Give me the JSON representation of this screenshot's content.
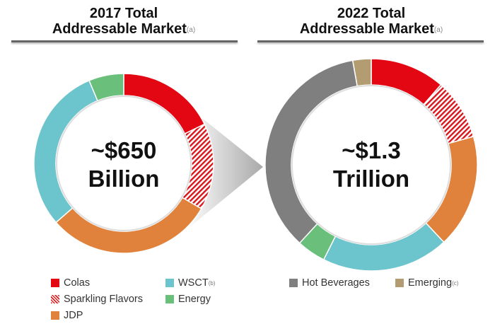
{
  "chart_data": [
    {
      "type": "pie",
      "variant": "donut",
      "title": "2017 Total Addressable Market",
      "title_line1": "2017 Total",
      "title_line2": "Addressable Market",
      "footnote": "(a)",
      "center_label_line1": "~$650",
      "center_label_line2": "Billion",
      "categories": [
        "Colas",
        "Sparkling Flavors",
        "JDP",
        "WSCT",
        "Energy"
      ],
      "values": [
        17.8,
        15.6,
        30.2,
        30.1,
        6.3
      ],
      "unit": "percent of total (estimated)"
    },
    {
      "type": "pie",
      "variant": "donut",
      "title": "2022 Total Addressable Market",
      "title_line1": "2022 Total",
      "title_line2": "Addressable Market",
      "footnote": "(a)",
      "center_label_line1": "~$1.3",
      "center_label_line2": "Trillion",
      "categories": [
        "Colas",
        "Sparkling Flavors",
        "JDP",
        "WSCT",
        "Energy",
        "Hot Beverages",
        "Emerging"
      ],
      "values": [
        11.4,
        9.3,
        17.3,
        19.4,
        4.4,
        35.4,
        2.8
      ],
      "unit": "percent of total (estimated)"
    }
  ],
  "legend": [
    {
      "label": "Colas",
      "sup": "",
      "color": "#e30613",
      "pattern": "solid"
    },
    {
      "label": "Sparkling Flavors",
      "sup": "",
      "color": "#e30613",
      "pattern": "hatched"
    },
    {
      "label": "JDP",
      "sup": "",
      "color": "#e0823c",
      "pattern": "solid"
    },
    {
      "label": "WSCT",
      "sup": "(b)",
      "color": "#6cc5cc",
      "pattern": "solid"
    },
    {
      "label": "Energy",
      "sup": "",
      "color": "#6abf7b",
      "pattern": "solid"
    },
    {
      "label": "Hot Beverages",
      "sup": "",
      "color": "#7f7f7f",
      "pattern": "solid"
    },
    {
      "label": "Emerging",
      "sup": "(c)",
      "color": "#b39b72",
      "pattern": "solid"
    }
  ]
}
